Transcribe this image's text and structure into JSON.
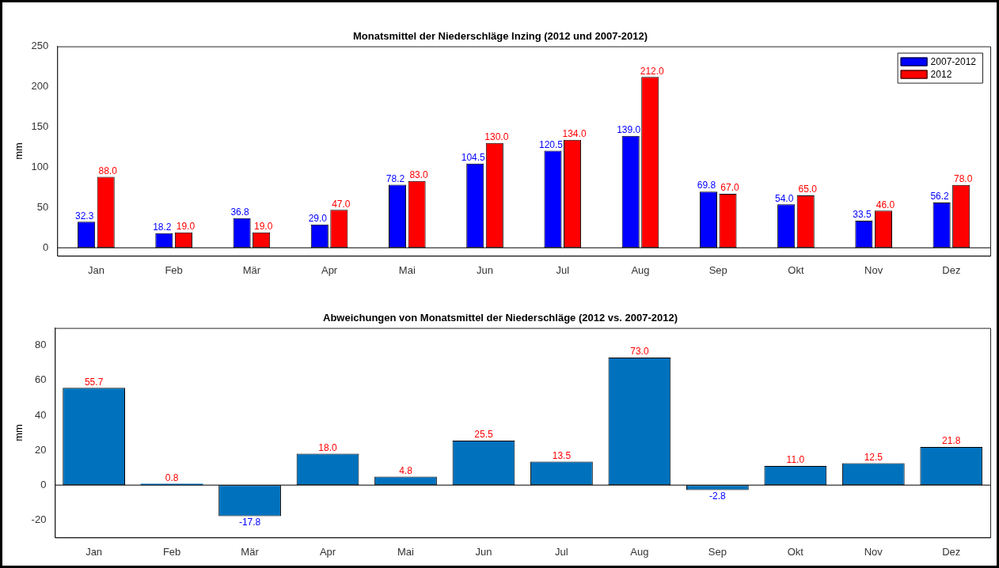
{
  "chart_data": [
    {
      "type": "bar",
      "title": "Monatsmittel der Niederschläge Inzing (2012 und 2007-2012)",
      "ylabel": "mm",
      "categories": [
        "Jan",
        "Feb",
        "Mär",
        "Apr",
        "Mai",
        "Jun",
        "Jul",
        "Aug",
        "Sep",
        "Okt",
        "Nov",
        "Dez"
      ],
      "series": [
        {
          "name": "2007-2012",
          "color": "#0000ff",
          "values": [
            32.3,
            18.2,
            36.8,
            29.0,
            78.2,
            104.5,
            120.5,
            139.0,
            69.8,
            54.0,
            33.5,
            56.2
          ],
          "value_labels": [
            "32.3",
            "18.2",
            "36.8",
            "29.0",
            "78.2",
            "104.5",
            "120.5",
            "139.0",
            "69.8",
            "54.0",
            "33.5",
            "56.2"
          ]
        },
        {
          "name": "2012",
          "color": "#ff0000",
          "values": [
            88.0,
            19.0,
            19.0,
            47.0,
            83.0,
            130.0,
            134.0,
            212.0,
            67.0,
            65.0,
            46.0,
            78.0
          ],
          "value_labels": [
            "88.0",
            "19.0",
            "19.0",
            "47.0",
            "83.0",
            "130.0",
            "134.0",
            "212.0",
            "67.0",
            "65.0",
            "46.0",
            "78.0"
          ]
        }
      ],
      "ylim": [
        -10,
        250
      ],
      "yticks": [
        0,
        50,
        100,
        150,
        200,
        250
      ],
      "grid": false,
      "legend": "top right",
      "data_labels": true,
      "ref_lines": [
        {
          "axis": "y",
          "value": 0,
          "color": "#000000"
        }
      ]
    },
    {
      "type": "bar",
      "title": "Abweichungen von Monatsmittel der Niederschläge (2012 vs. 2007-2012)",
      "ylabel": "mm",
      "categories": [
        "Jan",
        "Feb",
        "Mär",
        "Apr",
        "Mai",
        "Jun",
        "Jul",
        "Aug",
        "Sep",
        "Okt",
        "Nov",
        "Dez"
      ],
      "series": [
        {
          "color": "#0072bd",
          "values": [
            55.7,
            0.8,
            -17.8,
            18.0,
            4.8,
            25.5,
            13.5,
            73.0,
            -2.8,
            11.0,
            12.5,
            21.8
          ],
          "value_labels": [
            "55.7",
            "0.8",
            "-17.8",
            "18.0",
            "4.8",
            "25.5",
            "13.5",
            "73.0",
            "-2.8",
            "11.0",
            "12.5",
            "21.8"
          ]
        }
      ],
      "ylim": [
        -30,
        90
      ],
      "yticks": [
        -20,
        0,
        20,
        40,
        60,
        80
      ],
      "grid": false,
      "legend": false,
      "data_labels": true,
      "ref_lines": [
        {
          "axis": "y",
          "value": 0,
          "color": "#000000"
        }
      ]
    }
  ]
}
